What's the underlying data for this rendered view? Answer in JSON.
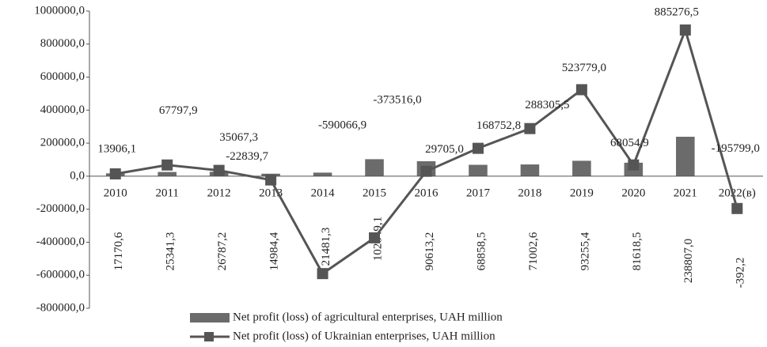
{
  "chart_data": {
    "type": "bar-line",
    "categories": [
      "2010",
      "2011",
      "2012",
      "2013",
      "2014",
      "2015",
      "2016",
      "2017",
      "2018",
      "2019",
      "2020",
      "2021",
      "2022(в)"
    ],
    "series": [
      {
        "name": "Net profit (loss) of agricultural enterprises, UAH million",
        "type": "bar",
        "color": "#6b6b6b",
        "values": [
          17170.6,
          25341.3,
          26787.2,
          14984.4,
          21481.3,
          102849.1,
          90613.2,
          68858.5,
          71002.6,
          93255.4,
          81618.5,
          238807.0,
          -392.2
        ],
        "value_labels": [
          "17170,6",
          "25341,3",
          "26787,2",
          "14984,4",
          "21481,3",
          "102849,1",
          "90613,2",
          "68858,5",
          "71002,6",
          "93255,4",
          "81618,5",
          "238807,0",
          "-392,2"
        ]
      },
      {
        "name": "Net profit (loss) of Ukrainian enterprises, UAH million",
        "type": "line",
        "color": "#555555",
        "values": [
          13906.1,
          67797.9,
          35067.3,
          -22839.7,
          -590066.9,
          -373516.0,
          29705.0,
          168752.8,
          288305.5,
          523779.0,
          68054.9,
          885276.5,
          -195799.0
        ],
        "value_labels": [
          "13906,1",
          "67797,9",
          "35067,3",
          "-22839,7",
          "-590066,9",
          "-373516,0",
          "29705,0",
          "168752,8",
          "288305,5",
          "523779,0",
          "68054,9",
          "885276,5",
          "-195799,0"
        ]
      }
    ],
    "ylim": [
      -800000,
      1000000
    ],
    "yticks": [
      {
        "value": -800000,
        "label": "-800000,0"
      },
      {
        "value": -600000,
        "label": "-600000,0"
      },
      {
        "value": -400000,
        "label": "-400000,0"
      },
      {
        "value": -200000,
        "label": "-200000,0"
      },
      {
        "value": 0,
        "label": "0,0"
      },
      {
        "value": 200000,
        "label": "200000,0"
      },
      {
        "value": 400000,
        "label": "400000,0"
      },
      {
        "value": 600000,
        "label": "600000,0"
      },
      {
        "value": 800000,
        "label": "800000,0"
      },
      {
        "value": 1000000,
        "label": "1000000,0"
      }
    ],
    "legend": "bottom"
  }
}
